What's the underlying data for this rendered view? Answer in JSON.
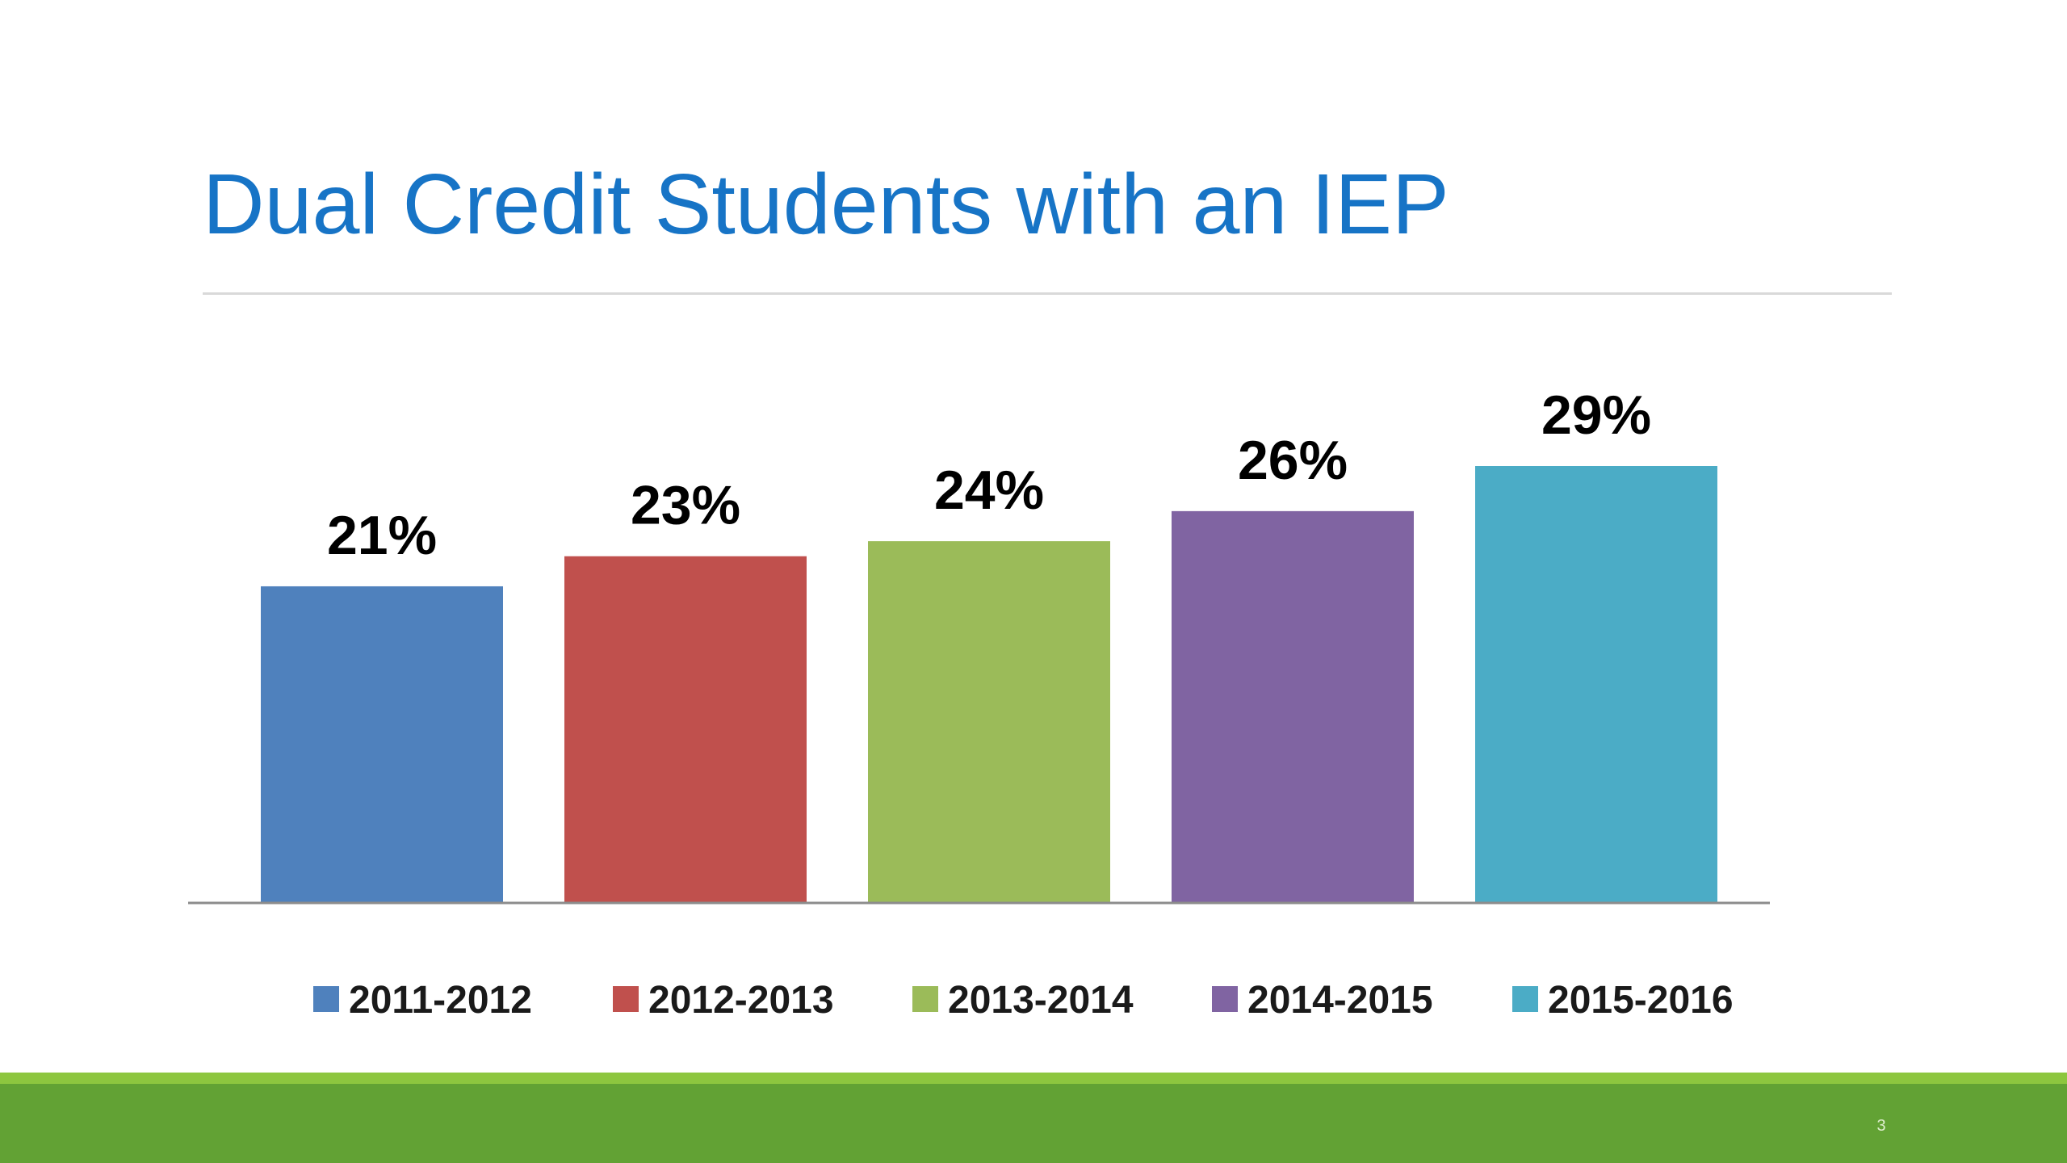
{
  "slide": {
    "title": "Dual Credit Students with an IEP",
    "page_number": "3"
  },
  "chart_data": {
    "type": "bar",
    "categories": [
      "2011-2012",
      "2012-2013",
      "2013-2014",
      "2014-2015",
      "2015-2016"
    ],
    "values": [
      21,
      23,
      24,
      26,
      29
    ],
    "data_labels": [
      "21%",
      "23%",
      "24%",
      "26%",
      "29%"
    ],
    "colors": [
      "#4f81bd",
      "#c0504d",
      "#9bbb59",
      "#8064a2",
      "#4bacc6"
    ],
    "ylim": [
      0,
      29
    ],
    "grid": false,
    "legend": {
      "position": "bottom",
      "entries": [
        "2011-2012",
        "2012-2013",
        "2013-2014",
        "2014-2015",
        "2015-2016"
      ]
    }
  }
}
